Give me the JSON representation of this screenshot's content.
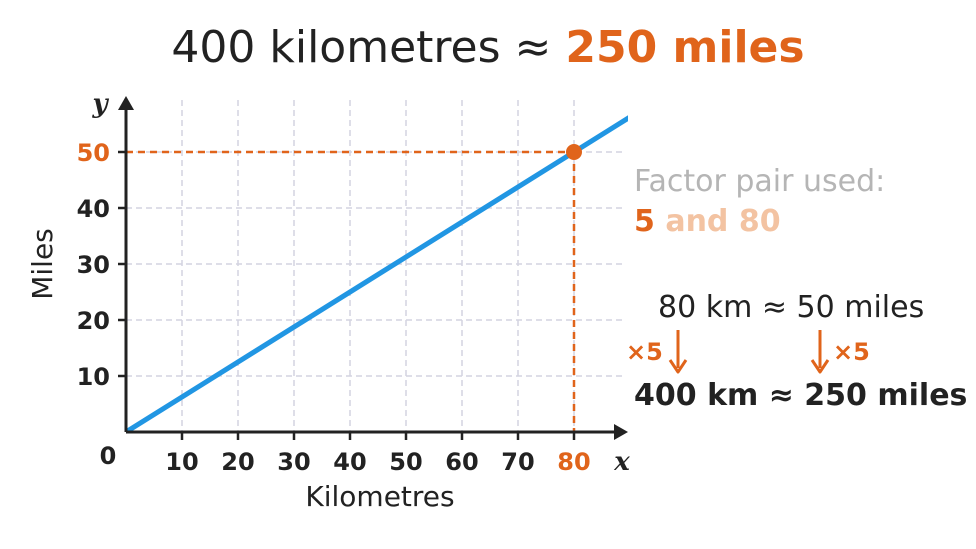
{
  "title": {
    "prefix": "400 kilometres ≈ ",
    "highlight": "250 miles"
  },
  "chart_data": {
    "type": "line",
    "x_axis_label": "Kilometres",
    "y_axis_label": "Miles",
    "x_axis_letter": "x",
    "y_axis_letter": "y",
    "origin_label": "0",
    "x_ticks": [
      10,
      20,
      30,
      40,
      50,
      60,
      70,
      80
    ],
    "y_ticks": [
      10,
      20,
      30,
      40,
      50
    ],
    "xlim": [
      0,
      90
    ],
    "ylim": [
      0,
      55
    ],
    "grid": true,
    "series": [
      {
        "x": [
          0,
          90
        ],
        "y": [
          0,
          56.25
        ],
        "color": "#2196e3"
      }
    ],
    "highlight_point": {
      "x": 80,
      "y": 50,
      "color": "#e0641b"
    }
  },
  "sidebar": {
    "factor_label": "Factor pair used:",
    "factor_a": "5",
    "factor_and": " and 80",
    "equation_1": "80 km ≈ 50 miles",
    "multiplier_left": "×5",
    "multiplier_right": "×5",
    "equation_2": "400 km ≈ 250 miles"
  },
  "colors": {
    "accent": "#e0641b",
    "line": "#2196e3",
    "grid": "#d4d4e0",
    "text": "#222222",
    "muted": "#b5b5b5",
    "light_accent": "#f3c3a2"
  }
}
